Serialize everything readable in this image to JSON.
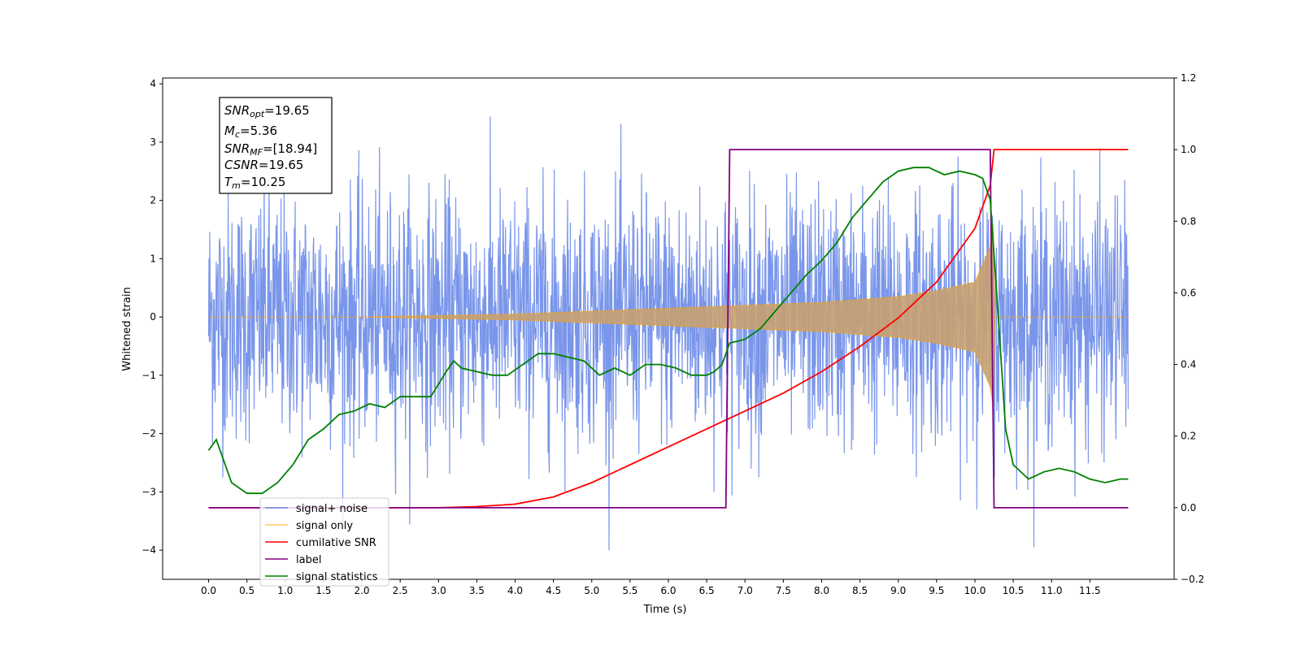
{
  "chart_data": {
    "type": "line",
    "xlabel": "Time (s)",
    "ylabel": "Whitened strain",
    "xlim": [
      -0.6,
      12.6
    ],
    "ylim": [
      -4.5,
      4.1
    ],
    "y2lim": [
      -0.2,
      1.2
    ],
    "x_ticks": [
      "0.0",
      "0.5",
      "1.0",
      "1.5",
      "2.0",
      "2.5",
      "3.0",
      "3.5",
      "4.0",
      "4.5",
      "5.0",
      "5.5",
      "6.0",
      "6.5",
      "7.0",
      "7.5",
      "8.0",
      "8.5",
      "9.0",
      "9.5",
      "10.0",
      "10.5",
      "11.0",
      "11.5"
    ],
    "y_ticks": [
      {
        "v": 4,
        "label": "4"
      },
      {
        "v": 3,
        "label": "3"
      },
      {
        "v": 2,
        "label": "2"
      },
      {
        "v": 1,
        "label": "1"
      },
      {
        "v": 0,
        "label": "0"
      },
      {
        "v": -1,
        "label": "−1"
      },
      {
        "v": -2,
        "label": "−2"
      },
      {
        "v": -3,
        "label": "−3"
      },
      {
        "v": -4,
        "label": "−4"
      }
    ],
    "y2_ticks": [
      "1.2",
      "1.0",
      "0.8",
      "0.6",
      "0.4",
      "0.2",
      "0.0",
      "−0.2"
    ],
    "legend_position": "lower-left",
    "annotation": {
      "snr_opt": {
        "sym": "SNR",
        "sub": "opt",
        "value": "=19.65"
      },
      "mc": {
        "sym": "M",
        "sub": "c",
        "value": "=5.36"
      },
      "snr_mf": {
        "sym": "SNR",
        "sub": "MF",
        "value": "=[18.94]"
      },
      "csnr": {
        "sym": "CSNR",
        "value": "=19.65"
      },
      "tm": {
        "sym": "T",
        "sub": "m",
        "value": "=10.25"
      }
    },
    "series": [
      {
        "name": "signal+ noise",
        "color": "#4169E1",
        "axis": "left",
        "description": "whitened noise plus signal, amplitude envelope approx ±2.5 with peaks to ±3.7, t = 0 to 12 s"
      },
      {
        "name": "signal only",
        "color": "#FFA500",
        "axis": "left",
        "envelope": {
          "t": [
            0,
            2,
            4,
            5,
            6,
            7,
            8,
            9,
            9.5,
            10,
            10.2,
            10.25
          ],
          "amp": [
            0,
            0.0,
            0.05,
            0.1,
            0.15,
            0.2,
            0.25,
            0.35,
            0.45,
            0.6,
            1.2,
            1.7
          ]
        }
      },
      {
        "name": "cumilative SNR",
        "color": "#FF0000",
        "axis": "right",
        "x": [
          0,
          3,
          3.5,
          4,
          4.5,
          5,
          5.5,
          6,
          6.5,
          7,
          7.5,
          8,
          8.5,
          9,
          9.5,
          10,
          10.2,
          10.25,
          12
        ],
        "y": [
          0.0,
          0.0,
          0.003,
          0.01,
          0.03,
          0.07,
          0.12,
          0.17,
          0.22,
          0.27,
          0.32,
          0.38,
          0.45,
          0.53,
          0.63,
          0.78,
          0.9,
          1.0,
          1.0
        ]
      },
      {
        "name": "label",
        "color": "#800080",
        "axis": "right",
        "x": [
          0,
          6.75,
          6.8,
          10.2,
          10.25,
          12
        ],
        "y": [
          0,
          0,
          1,
          1,
          0,
          0
        ]
      },
      {
        "name": "signal statistics",
        "color": "#008000",
        "axis": "right",
        "x": [
          0,
          0.1,
          0.3,
          0.5,
          0.7,
          0.9,
          1.1,
          1.3,
          1.5,
          1.7,
          1.9,
          2.1,
          2.3,
          2.5,
          2.7,
          2.9,
          3.1,
          3.2,
          3.3,
          3.5,
          3.7,
          3.9,
          4.1,
          4.3,
          4.5,
          4.7,
          4.9,
          5.1,
          5.3,
          5.5,
          5.7,
          5.9,
          6.1,
          6.3,
          6.5,
          6.6,
          6.7,
          6.8,
          7.0,
          7.2,
          7.4,
          7.6,
          7.8,
          8.0,
          8.2,
          8.4,
          8.6,
          8.8,
          9.0,
          9.2,
          9.4,
          9.6,
          9.8,
          10.0,
          10.1,
          10.2,
          10.3,
          10.4,
          10.5,
          10.7,
          10.9,
          11.1,
          11.3,
          11.5,
          11.7,
          11.9,
          12.0
        ],
        "y": [
          0.16,
          0.19,
          0.07,
          0.04,
          0.04,
          0.07,
          0.12,
          0.19,
          0.22,
          0.26,
          0.27,
          0.29,
          0.28,
          0.31,
          0.31,
          0.31,
          0.38,
          0.41,
          0.39,
          0.38,
          0.37,
          0.37,
          0.4,
          0.43,
          0.43,
          0.42,
          0.41,
          0.37,
          0.39,
          0.37,
          0.4,
          0.4,
          0.39,
          0.37,
          0.37,
          0.38,
          0.4,
          0.46,
          0.47,
          0.5,
          0.55,
          0.6,
          0.65,
          0.69,
          0.74,
          0.81,
          0.86,
          0.91,
          0.94,
          0.95,
          0.95,
          0.93,
          0.94,
          0.93,
          0.92,
          0.86,
          0.55,
          0.22,
          0.12,
          0.08,
          0.1,
          0.11,
          0.1,
          0.08,
          0.07,
          0.08,
          0.08
        ]
      }
    ]
  }
}
